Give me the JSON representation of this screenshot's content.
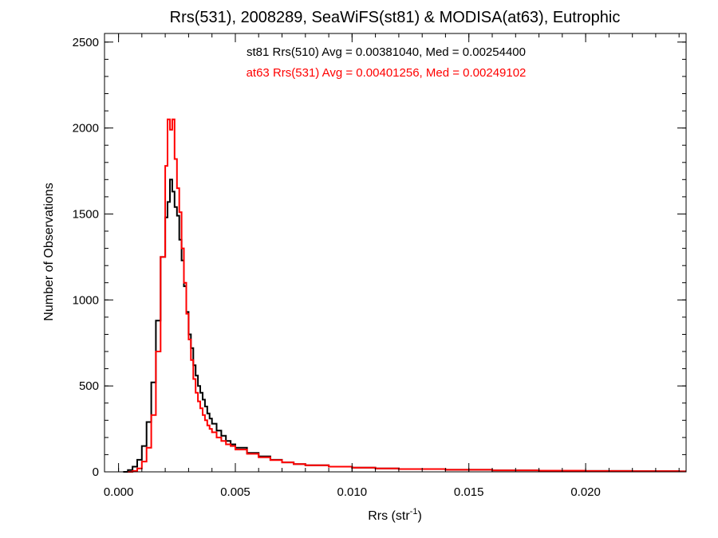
{
  "chart_data": {
    "type": "line",
    "title": "Rrs(531), 2008289, SeaWiFS(st81) & MODISA(at63), Eutrophic",
    "xlabel": "Rrs (str",
    "xlabel_sup": "-1",
    "xlabel_suffix": ")",
    "ylabel": "Number of Observations",
    "xlim": [
      -0.0006,
      0.0243
    ],
    "ylim": [
      0,
      2550
    ],
    "x_ticks": [
      0.0,
      0.005,
      0.01,
      0.015,
      0.02
    ],
    "x_tick_labels": [
      "0.000",
      "0.005",
      "0.010",
      "0.015",
      "0.020"
    ],
    "y_ticks": [
      0,
      500,
      1000,
      1500,
      2000,
      2500
    ],
    "y_tick_labels": [
      "0",
      "500",
      "1000",
      "1500",
      "2000",
      "2500"
    ],
    "grid": false,
    "annotations": [
      {
        "text": "st81 Rrs(510) Avg = 0.00381040, Med = 0.00254400",
        "color": "#000000"
      },
      {
        "text": "at63 Rrs(531) Avg = 0.00401256, Med = 0.00249102",
        "color": "#ff0000"
      }
    ],
    "series": [
      {
        "color": "#000000",
        "x": [
          0.0002,
          0.0004,
          0.0006,
          0.0008,
          0.001,
          0.0012,
          0.0014,
          0.0016,
          0.0018,
          0.002,
          0.0021,
          0.0022,
          0.0023,
          0.0024,
          0.0025,
          0.0026,
          0.0027,
          0.0028,
          0.0029,
          0.003,
          0.0031,
          0.0032,
          0.0033,
          0.0034,
          0.0035,
          0.0036,
          0.0037,
          0.0038,
          0.0039,
          0.004,
          0.0042,
          0.0044,
          0.0046,
          0.0048,
          0.005,
          0.0055,
          0.006,
          0.0065,
          0.007,
          0.0075,
          0.008,
          0.009,
          0.01,
          0.011,
          0.012,
          0.014,
          0.016,
          0.018,
          0.02,
          0.022,
          0.024
        ],
        "values": [
          0,
          10,
          30,
          70,
          150,
          290,
          520,
          880,
          1250,
          1480,
          1570,
          1700,
          1630,
          1540,
          1490,
          1350,
          1230,
          1080,
          930,
          800,
          720,
          620,
          560,
          500,
          460,
          420,
          380,
          340,
          310,
          280,
          240,
          210,
          180,
          160,
          140,
          110,
          90,
          70,
          55,
          45,
          38,
          30,
          24,
          20,
          16,
          12,
          9,
          7,
          5,
          4,
          3
        ]
      },
      {
        "color": "#ff0000",
        "x": [
          0.0004,
          0.0006,
          0.0008,
          0.001,
          0.0012,
          0.0014,
          0.0016,
          0.0018,
          0.002,
          0.0021,
          0.0022,
          0.0023,
          0.0024,
          0.0025,
          0.0026,
          0.0027,
          0.0028,
          0.0029,
          0.003,
          0.0031,
          0.0032,
          0.0033,
          0.0034,
          0.0035,
          0.0036,
          0.0037,
          0.0038,
          0.0039,
          0.004,
          0.0042,
          0.0044,
          0.0046,
          0.0048,
          0.005,
          0.0055,
          0.006,
          0.0065,
          0.007,
          0.0075,
          0.008,
          0.009,
          0.01,
          0.011,
          0.012,
          0.014,
          0.016,
          0.018,
          0.02,
          0.022,
          0.024
        ],
        "values": [
          0,
          5,
          20,
          60,
          140,
          330,
          700,
          1250,
          1780,
          2050,
          1990,
          2050,
          1820,
          1650,
          1510,
          1300,
          1100,
          920,
          770,
          650,
          540,
          460,
          410,
          370,
          330,
          300,
          270,
          250,
          230,
          200,
          180,
          160,
          150,
          130,
          105,
          85,
          68,
          55,
          45,
          38,
          30,
          24,
          20,
          16,
          12,
          9,
          7,
          5,
          4,
          3
        ]
      }
    ]
  }
}
